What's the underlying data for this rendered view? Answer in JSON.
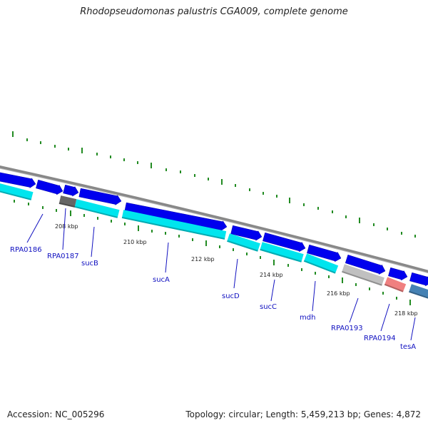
{
  "title": "Rhodopseudomonas palustris CGA009, complete genome",
  "footer": {
    "accession": "Accession: NC_005296",
    "topology": "Topology: circular; Length: 5,459,213 bp; Genes: 4,872"
  },
  "colors": {
    "backbone": "#888888",
    "cds_arrow": "#0000ee",
    "cds_bar": "#00e5ee",
    "gray_gene": "#c0c0c0",
    "dark_gray_gene": "#666666",
    "pink_gene": "#f08080",
    "steel_gene": "#4682b4",
    "tick": "#228b22",
    "label": "#1010c0"
  },
  "scale": {
    "ticks": [
      {
        "label": "208 kbp"
      },
      {
        "label": "210 kbp"
      },
      {
        "label": "212 kbp"
      },
      {
        "label": "214 kbp"
      },
      {
        "label": "216 kbp"
      },
      {
        "label": "218 kbp"
      }
    ]
  },
  "genes": [
    {
      "name": "RPA0186"
    },
    {
      "name": "RPA0187"
    },
    {
      "name": "sucB"
    },
    {
      "name": "sucA"
    },
    {
      "name": "sucD"
    },
    {
      "name": "sucC"
    },
    {
      "name": "mdh"
    },
    {
      "name": "RPA0193"
    },
    {
      "name": "RPA0194"
    },
    {
      "name": "tesA"
    }
  ]
}
